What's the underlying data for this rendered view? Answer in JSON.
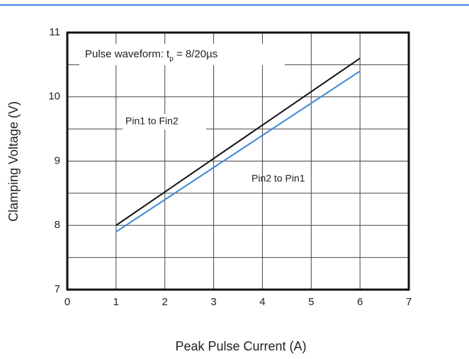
{
  "chart_data": {
    "type": "line",
    "annotation": {
      "text": "Pulse waveform: t",
      "sub": "p",
      "rest": " = 8/20µs"
    },
    "x_label": "Peak Pulse Current (A)",
    "y_label": "Clamping Voltage (V)",
    "x": [
      1,
      6
    ],
    "series": [
      {
        "name": "Pin1 to Fin2",
        "color": "#111111",
        "values": [
          8.0,
          10.6
        ]
      },
      {
        "name": "Pin2 to Pin1",
        "color": "#3a86d6",
        "values": [
          7.9,
          10.4
        ]
      }
    ],
    "xlim": [
      0,
      7
    ],
    "xticks": [
      0,
      1,
      2,
      3,
      4,
      5,
      6,
      7
    ],
    "ylim": [
      7,
      11
    ],
    "yticks": [
      7,
      8,
      9,
      10,
      11
    ],
    "y_minor_grid": [
      7.5,
      8.5,
      9.5,
      10.5
    ],
    "grid": true
  }
}
